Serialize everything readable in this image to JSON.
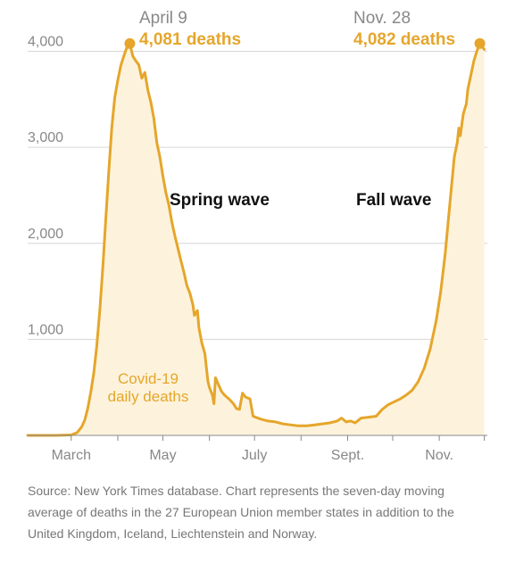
{
  "chart_data": {
    "type": "area",
    "title": "",
    "xlabel": "",
    "ylabel": "",
    "ylim": [
      0,
      4200
    ],
    "y_ticks": [
      {
        "value": 1000,
        "label": "1,000"
      },
      {
        "value": 2000,
        "label": "2,000"
      },
      {
        "value": 3000,
        "label": "3,000"
      },
      {
        "value": 4000,
        "label": "4,000"
      }
    ],
    "x_ticks": [
      {
        "month": 3,
        "label": "March"
      },
      {
        "month": 5,
        "label": "May"
      },
      {
        "month": 7,
        "label": "July"
      },
      {
        "month": 9,
        "label": "Sept."
      },
      {
        "month": 11,
        "label": "Nov."
      }
    ],
    "grid": "horizontal",
    "series": [
      {
        "name": "Covid-19 daily deaths",
        "color": "#e5a62b",
        "fill": "#fdf3dc",
        "points": [
          [
            "2020-02-01",
            0
          ],
          [
            "2020-02-20",
            0
          ],
          [
            "2020-03-01",
            5
          ],
          [
            "2020-03-05",
            30
          ],
          [
            "2020-03-08",
            90
          ],
          [
            "2020-03-10",
            160
          ],
          [
            "2020-03-12",
            280
          ],
          [
            "2020-03-14",
            450
          ],
          [
            "2020-03-16",
            650
          ],
          [
            "2020-03-18",
            930
          ],
          [
            "2020-03-20",
            1300
          ],
          [
            "2020-03-22",
            1750
          ],
          [
            "2020-03-24",
            2250
          ],
          [
            "2020-03-26",
            2750
          ],
          [
            "2020-03-28",
            3200
          ],
          [
            "2020-03-30",
            3520
          ],
          [
            "2020-04-01",
            3700
          ],
          [
            "2020-04-03",
            3850
          ],
          [
            "2020-04-05",
            3950
          ],
          [
            "2020-04-07",
            4040
          ],
          [
            "2020-04-09",
            4081
          ],
          [
            "2020-04-11",
            3950
          ],
          [
            "2020-04-13",
            3900
          ],
          [
            "2020-04-15",
            3860
          ],
          [
            "2020-04-17",
            3720
          ],
          [
            "2020-04-19",
            3780
          ],
          [
            "2020-04-21",
            3600
          ],
          [
            "2020-04-23",
            3470
          ],
          [
            "2020-04-25",
            3300
          ],
          [
            "2020-04-27",
            3050
          ],
          [
            "2020-04-29",
            2900
          ],
          [
            "2020-05-01",
            2700
          ],
          [
            "2020-05-03",
            2530
          ],
          [
            "2020-05-05",
            2400
          ],
          [
            "2020-05-07",
            2220
          ],
          [
            "2020-05-09",
            2080
          ],
          [
            "2020-05-11",
            1950
          ],
          [
            "2020-05-13",
            1820
          ],
          [
            "2020-05-15",
            1700
          ],
          [
            "2020-05-17",
            1560
          ],
          [
            "2020-05-19",
            1480
          ],
          [
            "2020-05-21",
            1360
          ],
          [
            "2020-05-22",
            1250
          ],
          [
            "2020-05-24",
            1300
          ],
          [
            "2020-05-25",
            1120
          ],
          [
            "2020-05-27",
            960
          ],
          [
            "2020-05-29",
            850
          ],
          [
            "2020-05-30",
            700
          ],
          [
            "2020-05-31",
            560
          ],
          [
            "2020-06-01",
            500
          ],
          [
            "2020-06-03",
            420
          ],
          [
            "2020-06-04",
            330
          ],
          [
            "2020-06-05",
            600
          ],
          [
            "2020-06-07",
            530
          ],
          [
            "2020-06-09",
            460
          ],
          [
            "2020-06-11",
            420
          ],
          [
            "2020-06-14",
            380
          ],
          [
            "2020-06-17",
            330
          ],
          [
            "2020-06-19",
            280
          ],
          [
            "2020-06-21",
            270
          ],
          [
            "2020-06-23",
            440
          ],
          [
            "2020-06-25",
            400
          ],
          [
            "2020-06-28",
            380
          ],
          [
            "2020-06-30",
            200
          ],
          [
            "2020-07-05",
            170
          ],
          [
            "2020-07-10",
            150
          ],
          [
            "2020-07-15",
            140
          ],
          [
            "2020-07-20",
            120
          ],
          [
            "2020-07-25",
            110
          ],
          [
            "2020-07-30",
            100
          ],
          [
            "2020-08-05",
            100
          ],
          [
            "2020-08-10",
            110
          ],
          [
            "2020-08-15",
            120
          ],
          [
            "2020-08-20",
            130
          ],
          [
            "2020-08-25",
            150
          ],
          [
            "2020-08-28",
            180
          ],
          [
            "2020-08-31",
            140
          ],
          [
            "2020-09-03",
            150
          ],
          [
            "2020-09-06",
            130
          ],
          [
            "2020-09-10",
            180
          ],
          [
            "2020-09-15",
            190
          ],
          [
            "2020-09-20",
            200
          ],
          [
            "2020-09-24",
            270
          ],
          [
            "2020-09-28",
            320
          ],
          [
            "2020-10-02",
            350
          ],
          [
            "2020-10-06",
            380
          ],
          [
            "2020-10-10",
            420
          ],
          [
            "2020-10-14",
            470
          ],
          [
            "2020-10-18",
            560
          ],
          [
            "2020-10-22",
            700
          ],
          [
            "2020-10-26",
            900
          ],
          [
            "2020-10-30",
            1200
          ],
          [
            "2020-11-02",
            1500
          ],
          [
            "2020-11-05",
            1900
          ],
          [
            "2020-11-08",
            2400
          ],
          [
            "2020-11-11",
            2900
          ],
          [
            "2020-11-13",
            3050
          ],
          [
            "2020-11-14",
            3200
          ],
          [
            "2020-11-15",
            3120
          ],
          [
            "2020-11-17",
            3350
          ],
          [
            "2020-11-19",
            3450
          ],
          [
            "2020-11-20",
            3600
          ],
          [
            "2020-11-22",
            3750
          ],
          [
            "2020-11-24",
            3900
          ],
          [
            "2020-11-26",
            4000
          ],
          [
            "2020-11-28",
            4082
          ],
          [
            "2020-12-01",
            4020
          ]
        ]
      }
    ],
    "series_label": [
      "Covid-19",
      "daily deaths"
    ],
    "annotations": [
      {
        "date_label": "April 9",
        "value_label": "4,081 deaths",
        "x": "2020-04-09",
        "y": 4081
      },
      {
        "date_label": "Nov. 28",
        "value_label": "4,082 deaths",
        "x": "2020-11-28",
        "y": 4082
      }
    ],
    "wave_labels": [
      "Spring wave",
      "Fall wave"
    ]
  },
  "source_text": "Source: New York Times database. Chart represents the seven-day moving average of deaths in the 27 European Union member states in addition to the United Kingdom, Iceland, Liechtenstein and Norway."
}
